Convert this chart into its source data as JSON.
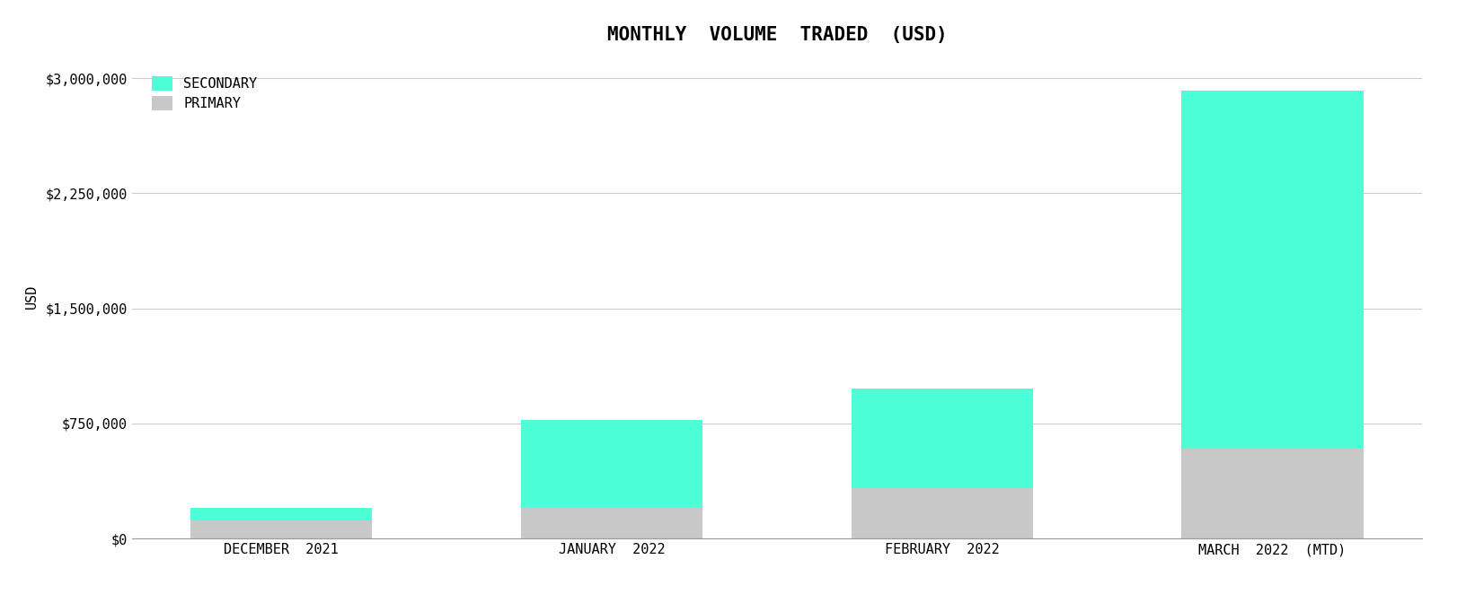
{
  "title": "MONTHLY  VOLUME  TRADED  (USD)",
  "categories": [
    "DECEMBER  2021",
    "JANUARY  2022",
    "FEBRUARY  2022",
    "MARCH  2022  (MTD)"
  ],
  "primary": [
    120000,
    200000,
    330000,
    590000
  ],
  "secondary": [
    80000,
    570000,
    650000,
    2330000
  ],
  "ylabel": "USD",
  "secondary_color": "#4DFFD6",
  "primary_color": "#C8C8C8",
  "background_color": "#FFFFFF",
  "legend_labels": [
    "SECONDARY",
    "PRIMARY"
  ],
  "yticks": [
    0,
    750000,
    1500000,
    2250000,
    3000000
  ],
  "ylim": [
    0,
    3150000
  ],
  "grid_color": "#CCCCCC",
  "title_fontsize": 15,
  "label_fontsize": 11,
  "tick_fontsize": 11,
  "bar_width": 0.55
}
